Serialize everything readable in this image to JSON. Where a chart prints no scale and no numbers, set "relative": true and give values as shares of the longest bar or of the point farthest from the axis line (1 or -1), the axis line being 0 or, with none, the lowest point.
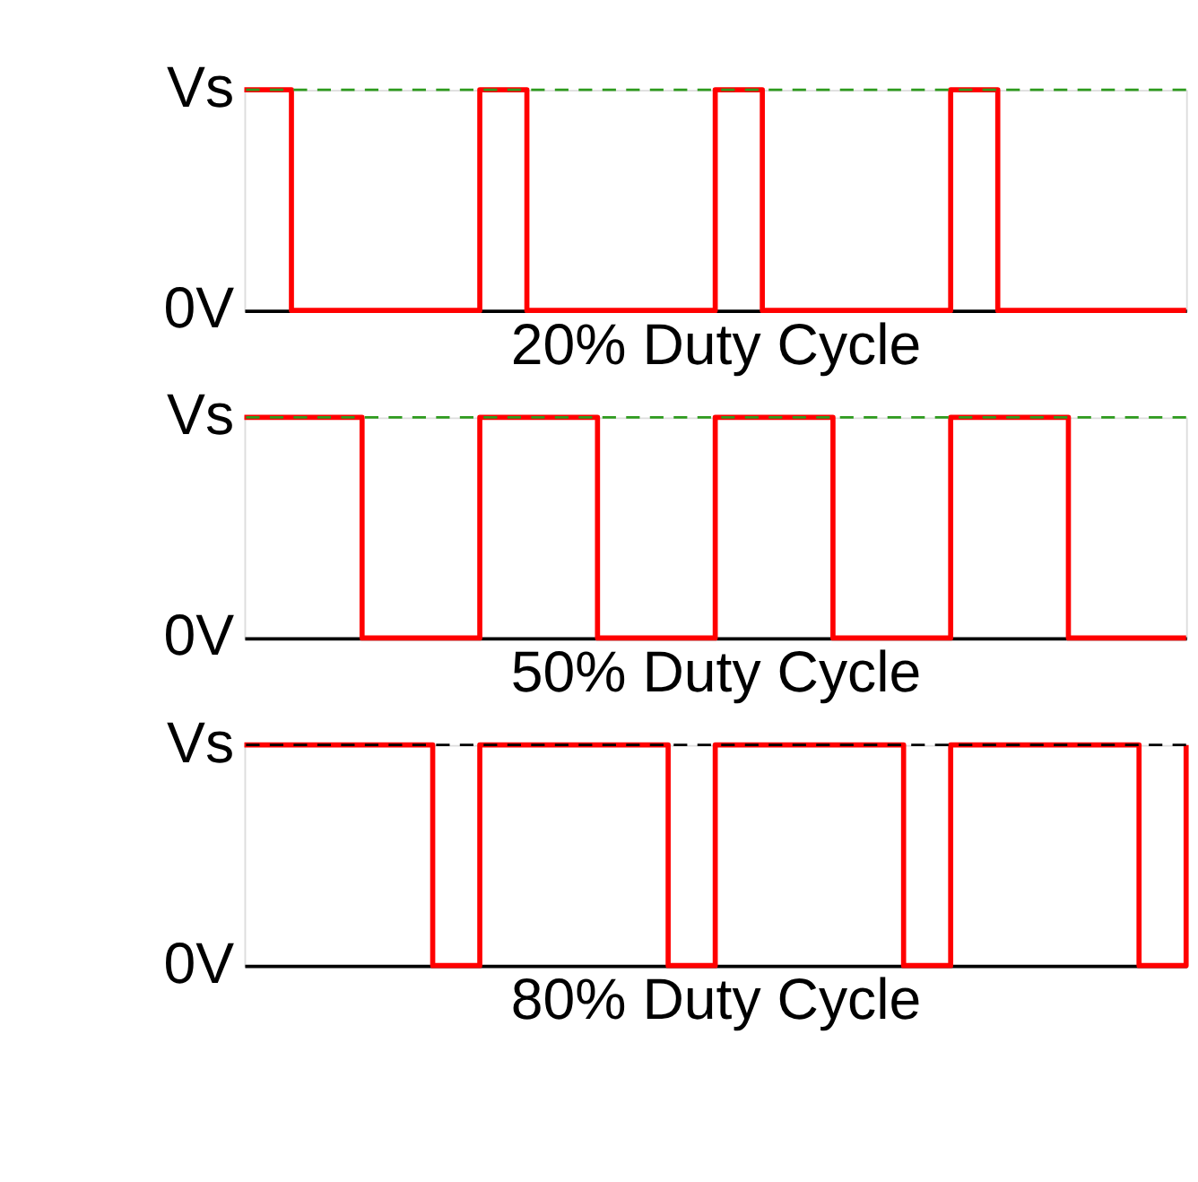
{
  "chart_data": [
    {
      "type": "step",
      "xlabel": "20% Duty Cycle",
      "categories": [
        null,
        null,
        null,
        null,
        null,
        null,
        null,
        null,
        null,
        null,
        null,
        null,
        null,
        null,
        null,
        null,
        null,
        null,
        null,
        null,
        null,
        null,
        null,
        null,
        null,
        null,
        null,
        null,
        null,
        null,
        null,
        null,
        null,
        null,
        null,
        null,
        null,
        null,
        null,
        null,
        null
      ],
      "values": [
        1,
        1,
        0,
        0,
        0,
        0,
        0,
        0,
        0,
        0,
        1,
        1,
        0,
        0,
        0,
        0,
        0,
        0,
        0,
        0,
        1,
        1,
        0,
        0,
        0,
        0,
        0,
        0,
        0,
        0,
        1,
        1,
        0,
        0,
        0,
        0,
        0,
        0,
        0,
        0,
        0
      ],
      "color": "#ff0000",
      "relative": true,
      "tick_labels": false,
      "annotations": [
        "Vs",
        "0V"
      ],
      "ref_lines": [
        {
          "axis": "y",
          "value": 1,
          "color": "#2e9b1e",
          "line_style": "dashed"
        }
      ]
    },
    {
      "type": "step",
      "xlabel": "50% Duty Cycle",
      "categories": [
        null,
        null,
        null,
        null,
        null,
        null,
        null,
        null,
        null,
        null,
        null,
        null,
        null,
        null,
        null,
        null,
        null,
        null,
        null,
        null,
        null,
        null,
        null,
        null,
        null,
        null,
        null,
        null,
        null,
        null,
        null,
        null,
        null,
        null,
        null,
        null,
        null,
        null,
        null,
        null,
        null
      ],
      "values": [
        1,
        1,
        1,
        1,
        1,
        0,
        0,
        0,
        0,
        0,
        1,
        1,
        1,
        1,
        1,
        0,
        0,
        0,
        0,
        0,
        1,
        1,
        1,
        1,
        1,
        0,
        0,
        0,
        0,
        0,
        1,
        1,
        1,
        1,
        1,
        0,
        0,
        0,
        0,
        0,
        0
      ],
      "color": "#ff0000",
      "relative": true,
      "tick_labels": false,
      "annotations": [
        "Vs",
        "0V"
      ],
      "ref_lines": [
        {
          "axis": "y",
          "value": 1,
          "color": "#2e9b1e",
          "line_style": "dashed"
        }
      ]
    },
    {
      "type": "step",
      "xlabel": "80% Duty Cycle",
      "categories": [
        null,
        null,
        null,
        null,
        null,
        null,
        null,
        null,
        null,
        null,
        null,
        null,
        null,
        null,
        null,
        null,
        null,
        null,
        null,
        null,
        null,
        null,
        null,
        null,
        null,
        null,
        null,
        null,
        null,
        null,
        null,
        null,
        null,
        null,
        null,
        null,
        null,
        null,
        null,
        null,
        null
      ],
      "values": [
        1,
        1,
        1,
        1,
        1,
        1,
        1,
        1,
        0,
        0,
        1,
        1,
        1,
        1,
        1,
        1,
        1,
        1,
        0,
        0,
        1,
        1,
        1,
        1,
        1,
        1,
        1,
        1,
        0,
        0,
        1,
        1,
        1,
        1,
        1,
        1,
        1,
        1,
        0,
        0,
        1
      ],
      "color": "#ff0000",
      "relative": true,
      "tick_labels": false,
      "annotations": [
        "Vs",
        "0V"
      ],
      "ref_lines": [
        {
          "axis": "y",
          "value": 1,
          "color": "#000000",
          "line_style": "dashed"
        }
      ]
    }
  ]
}
